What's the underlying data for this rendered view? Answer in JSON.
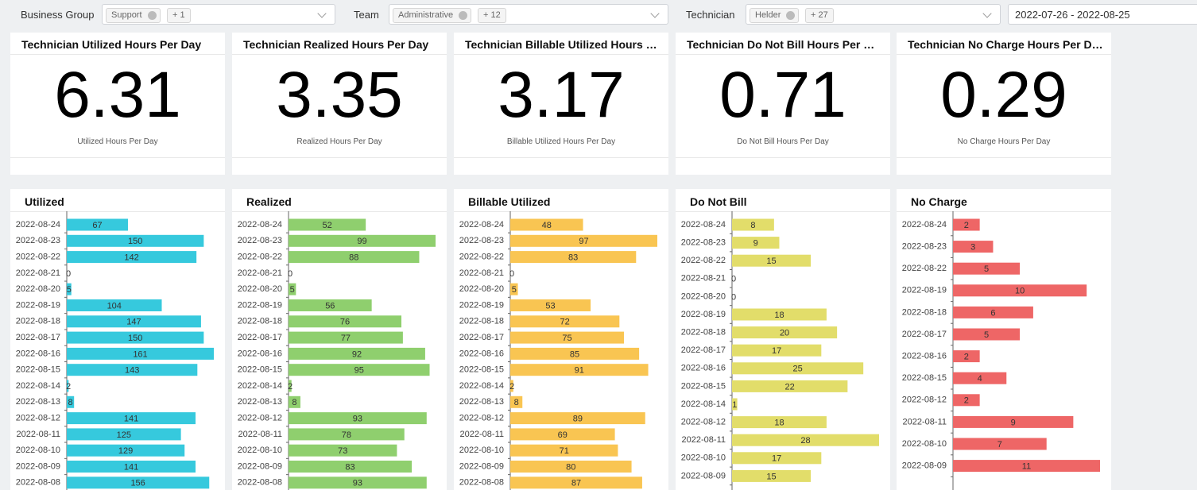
{
  "filters": [
    {
      "label": "Business Group",
      "chip": "Support",
      "more": "+ 1"
    },
    {
      "label": "Team",
      "chip": "Administrative",
      "more": "+ 12"
    },
    {
      "label": "Technician",
      "chip": "Helder",
      "more": "+ 27"
    }
  ],
  "date_range": "2022-07-26 - 2022-08-25",
  "kpis": [
    {
      "title": "Technician Utilized Hours Per Day",
      "value": 6.31,
      "subtitle": "Utilized Hours Per Day"
    },
    {
      "title": "Technician Realized Hours Per Day",
      "value": 3.35,
      "subtitle": "Realized Hours Per Day"
    },
    {
      "title": "Technician Billable Utilized Hours Per Day",
      "value": 3.17,
      "subtitle": "Billable Utilized Hours Per Day"
    },
    {
      "title": "Technician Do Not Bill Hours Per Day",
      "value": 0.71,
      "subtitle": "Do Not Bill Hours Per Day"
    },
    {
      "title": "Technician No Charge Hours Per Day",
      "value": 0.29,
      "subtitle": "No Charge Hours Per Day"
    }
  ],
  "chart_data": [
    {
      "type": "hbar",
      "title": "Utilized",
      "color": "#36c9dd",
      "categories": [
        "2022-08-24",
        "2022-08-23",
        "2022-08-22",
        "2022-08-21",
        "2022-08-20",
        "2022-08-19",
        "2022-08-18",
        "2022-08-17",
        "2022-08-16",
        "2022-08-15",
        "2022-08-14",
        "2022-08-13",
        "2022-08-12",
        "2022-08-11",
        "2022-08-10",
        "2022-08-09",
        "2022-08-08"
      ],
      "values": [
        67,
        150,
        142,
        0,
        5,
        104,
        147,
        150,
        161,
        143,
        2,
        8,
        141,
        125,
        129,
        141,
        156
      ]
    },
    {
      "type": "hbar",
      "title": "Realized",
      "color": "#8fcf6e",
      "categories": [
        "2022-08-24",
        "2022-08-23",
        "2022-08-22",
        "2022-08-21",
        "2022-08-20",
        "2022-08-19",
        "2022-08-18",
        "2022-08-17",
        "2022-08-16",
        "2022-08-15",
        "2022-08-14",
        "2022-08-13",
        "2022-08-12",
        "2022-08-11",
        "2022-08-10",
        "2022-08-09",
        "2022-08-08"
      ],
      "values": [
        52,
        99,
        88,
        0,
        5,
        56,
        76,
        77,
        92,
        95,
        2,
        8,
        93,
        78,
        73,
        83,
        93
      ]
    },
    {
      "type": "hbar",
      "title": "Billable Utilized",
      "color": "#f9c552",
      "categories": [
        "2022-08-24",
        "2022-08-23",
        "2022-08-22",
        "2022-08-21",
        "2022-08-20",
        "2022-08-19",
        "2022-08-18",
        "2022-08-17",
        "2022-08-16",
        "2022-08-15",
        "2022-08-14",
        "2022-08-13",
        "2022-08-12",
        "2022-08-11",
        "2022-08-10",
        "2022-08-09",
        "2022-08-08"
      ],
      "values": [
        48,
        97,
        83,
        0,
        5,
        53,
        72,
        75,
        85,
        91,
        2,
        8,
        89,
        69,
        71,
        80,
        87
      ]
    },
    {
      "type": "hbar",
      "title": "Do Not Bill",
      "color": "#e2dd6a",
      "categories": [
        "2022-08-24",
        "2022-08-23",
        "2022-08-22",
        "2022-08-21",
        "2022-08-20",
        "2022-08-19",
        "2022-08-18",
        "2022-08-17",
        "2022-08-16",
        "2022-08-15",
        "2022-08-14",
        "2022-08-12",
        "2022-08-11",
        "2022-08-10",
        "2022-08-09"
      ],
      "values": [
        8,
        9,
        15,
        0,
        0,
        18,
        20,
        17,
        25,
        22,
        1,
        18,
        28,
        17,
        15
      ]
    },
    {
      "type": "hbar",
      "title": "No Charge",
      "color": "#ee6666",
      "categories": [
        "2022-08-24",
        "2022-08-23",
        "2022-08-22",
        "2022-08-19",
        "2022-08-18",
        "2022-08-17",
        "2022-08-16",
        "2022-08-15",
        "2022-08-12",
        "2022-08-11",
        "2022-08-10",
        "2022-08-09"
      ],
      "values": [
        2,
        3,
        5,
        10,
        6,
        5,
        2,
        4,
        2,
        9,
        7,
        11
      ]
    }
  ]
}
